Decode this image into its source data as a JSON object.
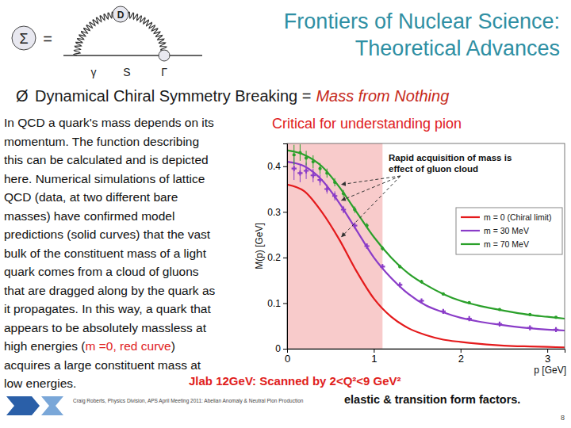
{
  "header": {
    "title": [
      "Frontiers of Nuclear Science:",
      "Theoretical Advances"
    ],
    "diagram": {
      "lhs": "Σ",
      "equals": "=",
      "top": "D",
      "left": "γ",
      "middle": "S",
      "right": "Γ"
    }
  },
  "bullet": {
    "symbol": "Ø",
    "text": "Dynamical Chiral Symmetry Breaking =",
    "highlight": "Mass from Nothing"
  },
  "callout": "Critical for understanding pion",
  "body": {
    "lines": [
      [
        {
          "text": "In QCD a quark's mass depends on its"
        }
      ],
      [
        {
          "text": "momentum.  The function describing"
        }
      ],
      [
        {
          "text": "this can be calculated and is depicted"
        }
      ],
      [
        {
          "text": "here.  Numerical simulations of lattice"
        }
      ],
      [
        {
          "text": "QCD (data, at two different bare"
        }
      ],
      [
        {
          "text": "masses) have confirmed model"
        }
      ],
      [
        {
          "text": "predictions (solid curves) that the vast"
        }
      ],
      [
        {
          "text": "bulk of the constituent mass of a light"
        }
      ],
      [
        {
          "text": "quark comes from a cloud of gluons"
        }
      ],
      [
        {
          "text": "that are dragged along by the quark as"
        }
      ],
      [
        {
          "text": "it propagates. In this way, a quark that"
        }
      ],
      [
        {
          "text": "appears to be absolutely massless at"
        }
      ],
      [
        {
          "text": "high energies ("
        },
        {
          "text": "m =0, red curve",
          "color": "#e0201c"
        },
        {
          "text": ")"
        }
      ],
      [
        {
          "text": "acquires a large constituent mass at"
        }
      ],
      [
        {
          "text": "low energies."
        }
      ]
    ]
  },
  "chart_data": {
    "type": "line",
    "xlabel": "p [GeV]",
    "ylabel": "M(p) [GeV]",
    "annotation": [
      "Rapid acquisition of mass is",
      "effect of gluon cloud"
    ],
    "shaded_range": [
      0,
      1.1
    ],
    "xlim": [
      0,
      3.2
    ],
    "xticks": [
      0,
      1,
      2,
      3
    ],
    "ylim": [
      0,
      0.45
    ],
    "yticks": [
      0,
      0.1,
      0.2,
      0.3,
      0.4
    ],
    "legend": "right",
    "x": [
      0,
      0.2,
      0.4,
      0.6,
      0.8,
      1.0,
      1.2,
      1.4,
      1.6,
      1.8,
      2.0,
      2.2,
      2.4,
      2.6,
      2.8,
      3.0,
      3.2
    ],
    "series": [
      {
        "name": "m = 0 (Chiral limit)",
        "color": "#e41a1c",
        "values": [
          0.36,
          0.345,
          0.3,
          0.24,
          0.17,
          0.11,
          0.07,
          0.045,
          0.03,
          0.02,
          0.015,
          0.011,
          0.008,
          0.006,
          0.005,
          0.004,
          0.003
        ]
      },
      {
        "name": "m = 30 MeV",
        "color": "#8a3cc8",
        "values": [
          0.41,
          0.4,
          0.37,
          0.32,
          0.26,
          0.2,
          0.155,
          0.12,
          0.095,
          0.08,
          0.068,
          0.06,
          0.054,
          0.049,
          0.045,
          0.042,
          0.04
        ],
        "lattice": {
          "marker": "cross",
          "x": [
            0.08,
            0.15,
            0.22,
            0.3,
            0.38,
            0.46,
            0.55,
            0.65,
            0.78,
            0.92,
            1.1,
            1.3,
            1.55,
            1.8,
            2.1,
            2.45,
            2.8,
            3.1
          ],
          "values": [
            0.395,
            0.385,
            0.39,
            0.38,
            0.37,
            0.35,
            0.335,
            0.305,
            0.27,
            0.225,
            0.18,
            0.14,
            0.105,
            0.082,
            0.066,
            0.054,
            0.046,
            0.042
          ],
          "errors": [
            0.025,
            0.02,
            0.018,
            0.015,
            0.012,
            0.01,
            0.01,
            0.008,
            0.007,
            0.006,
            0.005,
            0.004,
            0.004,
            0.003,
            0.003,
            0.003,
            0.002,
            0.002
          ]
        }
      },
      {
        "name": "m = 70 MeV",
        "color": "#2aa02a",
        "values": [
          0.435,
          0.425,
          0.4,
          0.355,
          0.3,
          0.245,
          0.2,
          0.165,
          0.14,
          0.12,
          0.105,
          0.095,
          0.087,
          0.08,
          0.074,
          0.07,
          0.066
        ],
        "lattice": {
          "marker": "circle",
          "x": [
            0.08,
            0.15,
            0.22,
            0.3,
            0.38,
            0.46,
            0.55,
            0.65,
            0.78,
            0.92,
            1.1,
            1.3,
            1.55,
            1.8,
            2.1,
            2.45,
            2.8,
            3.1
          ],
          "values": [
            0.425,
            0.43,
            0.418,
            0.41,
            0.395,
            0.385,
            0.365,
            0.34,
            0.305,
            0.27,
            0.22,
            0.18,
            0.147,
            0.12,
            0.101,
            0.086,
            0.075,
            0.069
          ],
          "errors": [
            0.022,
            0.018,
            0.016,
            0.014,
            0.012,
            0.01,
            0.009,
            0.008,
            0.007,
            0.006,
            0.005,
            0.004,
            0.004,
            0.003,
            0.003,
            0.003,
            0.002,
            0.002
          ]
        }
      }
    ]
  },
  "footer": {
    "note": "Jlab 12GeV: Scanned by 2<Q²<9 GeV²",
    "note_end": "elastic & transition form factors.",
    "credit": "Craig Roberts, Physics Division, APS April Meeting 2011: Abelian Anomaly & Neutral Pion Production",
    "page": "8"
  }
}
